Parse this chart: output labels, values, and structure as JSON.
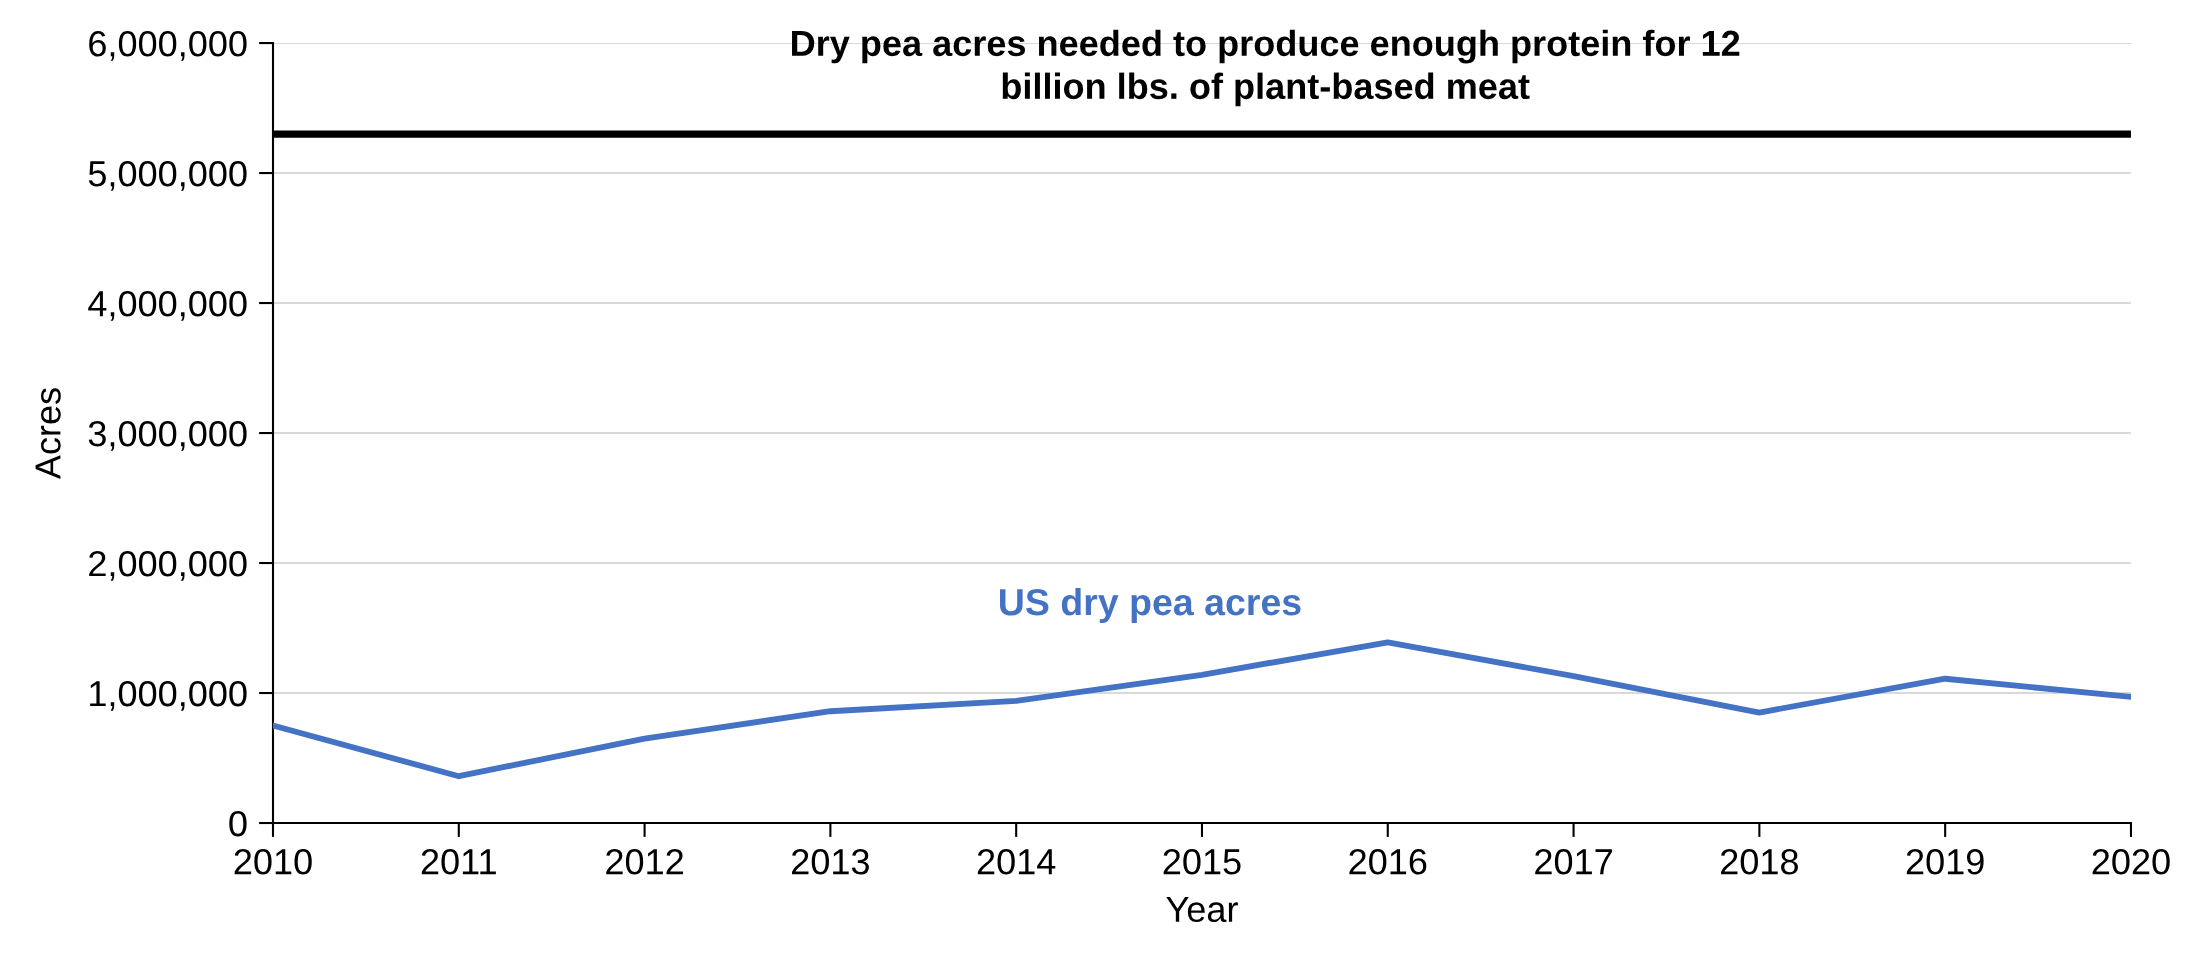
{
  "chart_data": {
    "type": "line",
    "xlabel": "Year",
    "ylabel": "Acres",
    "x": [
      2010,
      2011,
      2012,
      2013,
      2014,
      2015,
      2016,
      2017,
      2018,
      2019,
      2020
    ],
    "series": [
      {
        "name": "US dry pea acres",
        "color": "#4472c4",
        "values": [
          750000,
          360000,
          650000,
          860000,
          940000,
          1140000,
          1390000,
          1130000,
          850000,
          1110000,
          970000
        ]
      }
    ],
    "ref_lines": [
      {
        "axis": "y",
        "value": 5300000,
        "label": "Dry pea acres needed to produce enough protein for 12\nbillion lbs. of plant-based meat",
        "color": "#000000"
      }
    ],
    "xlim": [
      2010,
      2020
    ],
    "xticks": [
      2010,
      2011,
      2012,
      2013,
      2014,
      2015,
      2016,
      2017,
      2018,
      2019,
      2020
    ],
    "ylim": [
      0,
      6000000
    ],
    "yticks": [
      0,
      {
        "value": 1000000,
        "label": "1,000,000"
      },
      {
        "value": 2000000,
        "label": "2,000,000"
      },
      {
        "value": 3000000,
        "label": "3,000,000"
      },
      {
        "value": 4000000,
        "label": "4,000,000"
      },
      {
        "value": 5000000,
        "label": "5,000,000"
      },
      {
        "value": 6000000,
        "label": "6,000,000"
      }
    ],
    "grid": "y"
  }
}
